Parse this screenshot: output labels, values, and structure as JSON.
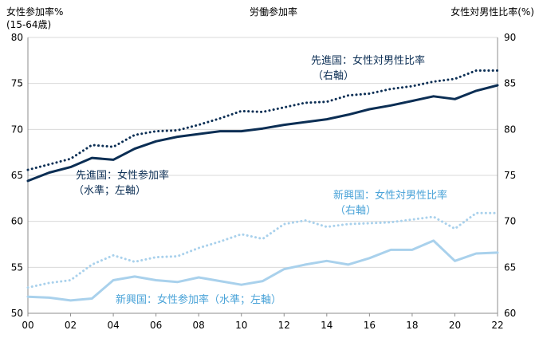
{
  "chart_data": {
    "type": "line",
    "title": "労働参加率",
    "y_left": {
      "label_line1": "女性参加率%",
      "label_line2": "(15-64歳)",
      "min": 50,
      "max": 80,
      "ticks": [
        50,
        55,
        60,
        65,
        70,
        75,
        80
      ]
    },
    "y_right": {
      "label": "女性対男性比率(%)",
      "min": 60,
      "max": 90,
      "ticks": [
        60,
        65,
        70,
        75,
        80,
        85,
        90
      ]
    },
    "x": [
      2000,
      2001,
      2002,
      2003,
      2004,
      2005,
      2006,
      2007,
      2008,
      2009,
      2010,
      2011,
      2012,
      2013,
      2014,
      2015,
      2016,
      2017,
      2018,
      2019,
      2020,
      2021,
      2022
    ],
    "x_tick_labels": [
      "00",
      "02",
      "04",
      "06",
      "08",
      "10",
      "12",
      "14",
      "16",
      "18",
      "20",
      "22"
    ],
    "x_tick_years": [
      2000,
      2002,
      2004,
      2006,
      2008,
      2010,
      2012,
      2014,
      2016,
      2018,
      2020,
      2022
    ],
    "grid": "horizontal",
    "colors": {
      "advanced": "#0b2e54",
      "emerging": "#a9d1ec",
      "emerging_text": "#4aa3d8"
    },
    "series": [
      {
        "key": "adv_participation",
        "axis": "left",
        "style": "solid",
        "color": "#0b2e54",
        "values": [
          64.4,
          65.3,
          65.9,
          66.9,
          66.7,
          67.9,
          68.7,
          69.2,
          69.5,
          69.8,
          69.8,
          70.1,
          70.5,
          70.8,
          71.1,
          71.6,
          72.2,
          72.6,
          73.1,
          73.6,
          73.3,
          74.2,
          74.8
        ]
      },
      {
        "key": "adv_ratio",
        "axis": "right",
        "style": "dotted",
        "color": "#0b2e54",
        "values": [
          75.6,
          76.2,
          76.8,
          78.3,
          78.1,
          79.4,
          79.8,
          79.9,
          80.5,
          81.2,
          82.0,
          81.9,
          82.4,
          82.9,
          83.0,
          83.7,
          83.9,
          84.4,
          84.7,
          85.2,
          85.5,
          86.4,
          86.4
        ]
      },
      {
        "key": "em_participation",
        "axis": "left",
        "style": "solid",
        "color": "#a9d1ec",
        "values": [
          51.8,
          51.7,
          51.4,
          51.6,
          53.6,
          54.0,
          53.6,
          53.4,
          53.9,
          53.5,
          53.1,
          53.5,
          54.8,
          55.3,
          55.7,
          55.3,
          56.0,
          56.9,
          56.9,
          57.9,
          55.7,
          56.5,
          56.6
        ]
      },
      {
        "key": "em_ratio",
        "axis": "right",
        "style": "dotted",
        "color": "#a9d1ec",
        "values": [
          62.8,
          63.3,
          63.6,
          65.3,
          66.3,
          65.6,
          66.1,
          66.2,
          67.1,
          67.8,
          68.6,
          68.1,
          69.7,
          70.1,
          69.4,
          69.7,
          69.8,
          69.9,
          70.2,
          70.5,
          69.2,
          70.9,
          70.9
        ]
      }
    ],
    "annotations": {
      "adv_ratio_line1": "先進国：女性対男性比率",
      "adv_ratio_line2": "（右軸）",
      "adv_part_line1": "先進国：女性参加率",
      "adv_part_line2": "（水準；左軸）",
      "em_ratio_line1": "新興国：女性対男性比率",
      "em_ratio_line2": "（右軸）",
      "em_part_line1": "新興国：女性参加率（水準；左軸）"
    }
  }
}
